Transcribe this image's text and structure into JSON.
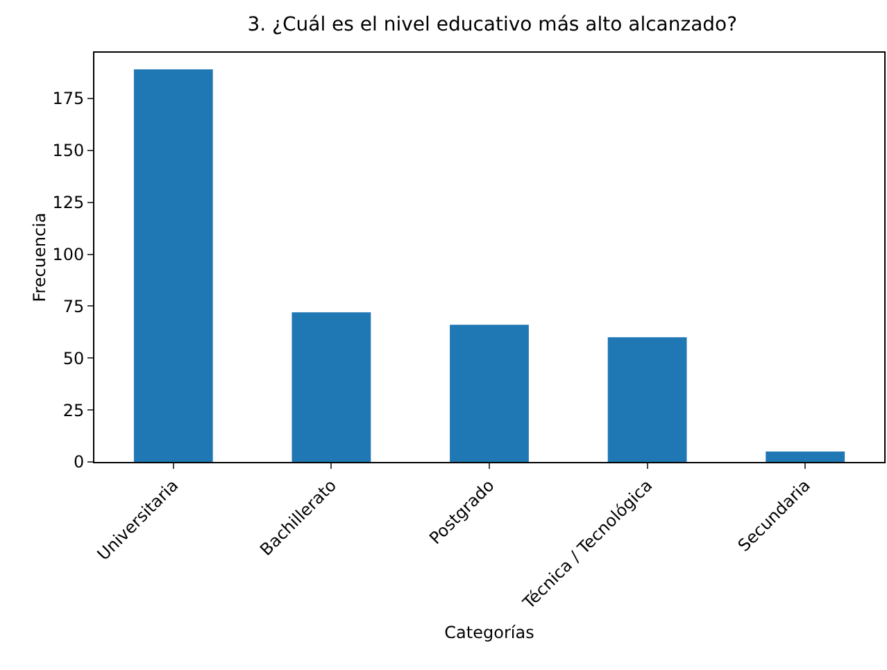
{
  "chart_data": {
    "type": "bar",
    "title": "3. ¿Cuál es el nivel educativo más alto alcanzado?",
    "xlabel": "Categorías",
    "ylabel": "Frecuencia",
    "categories": [
      "Universitaria",
      "Bachillerato",
      "Postgrado",
      "Técnica / Tecnológica",
      "Secundaria"
    ],
    "values": [
      189,
      72,
      66,
      60,
      5
    ],
    "color": "#1f77b4",
    "ylim": [
      0,
      197
    ],
    "yticks": [
      0,
      25,
      50,
      75,
      100,
      125,
      150,
      175
    ],
    "grid": false,
    "legend": false
  }
}
